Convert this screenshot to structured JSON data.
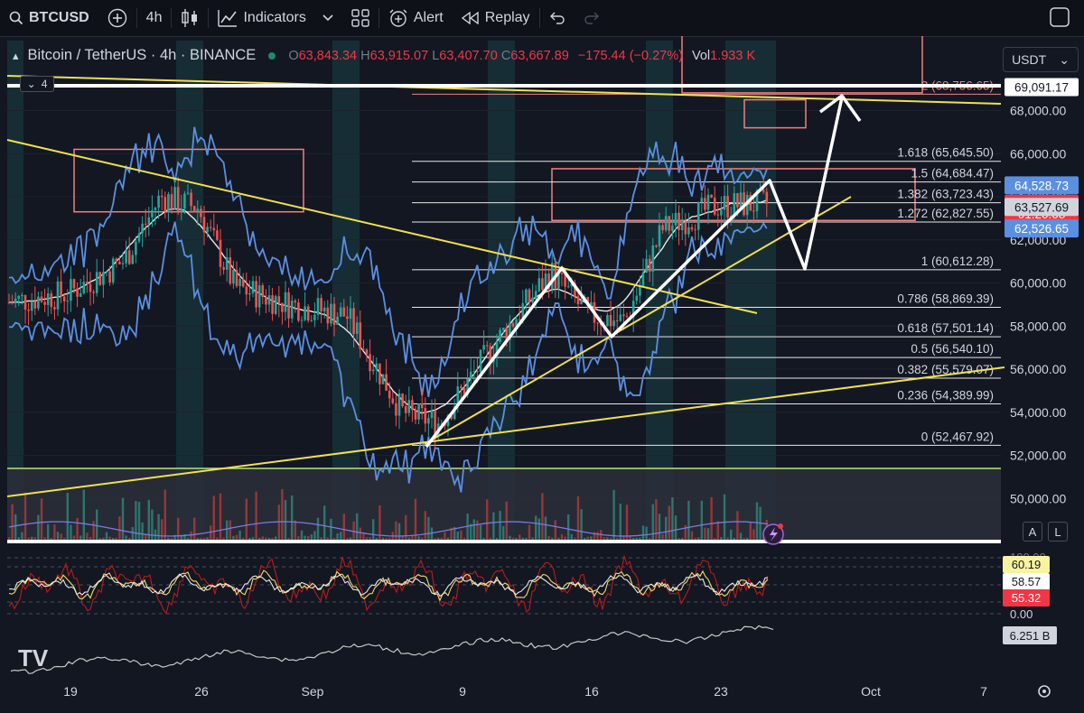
{
  "toolbar": {
    "symbol": "BTCUSD",
    "interval": "4h",
    "indicators": "Indicators",
    "alert": "Alert",
    "replay": "Replay"
  },
  "legend": {
    "title": "Bitcoin / TetherUS · 4h · BINANCE",
    "o_label": "O",
    "o": "63,843.34",
    "h_label": "H",
    "h": "63,915.07",
    "l_label": "L",
    "l": "63,407.70",
    "c_label": "C",
    "c": "63,667.89",
    "change": "−175.44 (−0.27%)",
    "vol_label": "Vol",
    "vol": "1.933 K",
    "collapsed_count": "4"
  },
  "currency": "USDT",
  "colors": {
    "background": "#131722",
    "up": "#26a69a",
    "down": "#ef5350",
    "bollinger": "#5b8fe0",
    "fib": "#ffffff",
    "trendline": "#f0e050",
    "zone": "#f08080"
  },
  "chart_data": [
    {
      "type": "line",
      "title": "Bitcoin / TetherUS · 4h · BINANCE",
      "y_scale": "linear",
      "ylim": [
        49000,
        70000
      ],
      "price_axis_ticks": [
        50000,
        52000,
        54000,
        56000,
        58000,
        60000,
        62000,
        64000,
        66000,
        68000
      ],
      "x_ticks": [
        "19",
        "26",
        "Sep",
        "9",
        "16",
        "23",
        "Oct",
        "7"
      ],
      "series": [
        {
          "name": "price",
          "x": [
            "Aug 15",
            "Aug 19",
            "Aug 22",
            "Aug 24",
            "Aug 26",
            "Aug 28",
            "Aug 31",
            "Sep 3",
            "Sep 6",
            "Sep 8",
            "Sep 11",
            "Sep 14",
            "Sep 16",
            "Sep 18",
            "Sep 20",
            "Sep 23",
            "Sep 26"
          ],
          "values": [
            59000,
            59500,
            61000,
            64000,
            63500,
            59800,
            59000,
            58500,
            54000,
            53500,
            57200,
            60500,
            58500,
            58200,
            62500,
            63600,
            63668
          ]
        }
      ],
      "fib_levels": [
        {
          "label": "2 (68,756.65)",
          "value": 68756.65
        },
        {
          "label": "1.618 (65,645.50)",
          "value": 65645.5
        },
        {
          "label": "1.5 (64,684.47)",
          "value": 64684.47
        },
        {
          "label": "1.382 (63,723.43)",
          "value": 63723.43
        },
        {
          "label": "1.272 (62,827.55)",
          "value": 62827.55
        },
        {
          "label": "1 (60,612.28)",
          "value": 60612.28
        },
        {
          "label": "0.786 (58,869.39)",
          "value": 58869.39
        },
        {
          "label": "0.618 (57,501.14)",
          "value": 57501.14
        },
        {
          "label": "0.5 (56,540.10)",
          "value": 56540.1
        },
        {
          "label": "0.382 (55,579.07)",
          "value": 55579.07
        },
        {
          "label": "0.236 (54,389.99)",
          "value": 54389.99
        },
        {
          "label": "0 (52,467.92)",
          "value": 52467.92
        }
      ],
      "price_labels": [
        {
          "text": "69,091.17",
          "value": 69091.17,
          "color": "#ffffff"
        },
        {
          "text": "64,528.73",
          "value": 64528.73,
          "color": "#5b8fe0"
        },
        {
          "text": "63,667.89",
          "value": 63667.89,
          "color": "#f23645"
        },
        {
          "text": "01:20:08",
          "value": 63200,
          "color": "#f23645"
        },
        {
          "text": "63,527.69",
          "value": 63527.69,
          "color": "#d1d4dc"
        },
        {
          "text": "62,526.65",
          "value": 62526.65,
          "color": "#5b8fe0"
        }
      ]
    },
    {
      "type": "line",
      "title": "Oscillator",
      "visible_scale_labels": [
        "100.00",
        "0.00"
      ],
      "last_values": [
        "60.19",
        "58.57",
        "55.32"
      ],
      "value_colors": [
        "#f7f3a0",
        "#ffffff",
        "#f23645"
      ]
    },
    {
      "type": "line",
      "title": "Cumulative volume",
      "last_value": "6.251 B"
    }
  ],
  "watermark": "TV",
  "buttons": {
    "auto": "A",
    "log": "L"
  }
}
